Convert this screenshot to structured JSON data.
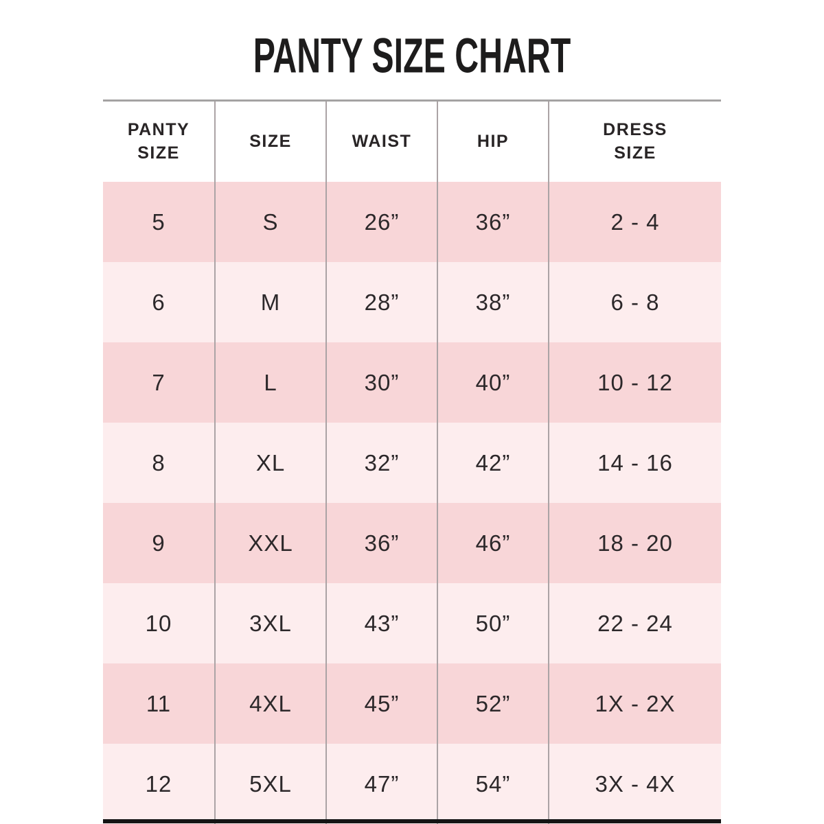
{
  "title": "PANTY SIZE CHART",
  "chart_data": {
    "type": "table",
    "title": "PANTY SIZE CHART",
    "columns": [
      "PANTY\nSIZE",
      "SIZE",
      "WAIST",
      "HIP",
      "DRESS\nSIZE"
    ],
    "rows": [
      [
        "5",
        "S",
        "26”",
        "36”",
        "2 - 4"
      ],
      [
        "6",
        "M",
        "28”",
        "38”",
        "6 - 8"
      ],
      [
        "7",
        "L",
        "30”",
        "40”",
        "10 - 12"
      ],
      [
        "8",
        "XL",
        "32”",
        "42”",
        "14 - 16"
      ],
      [
        "9",
        "XXL",
        "36”",
        "46”",
        "18 - 20"
      ],
      [
        "10",
        "3XL",
        "43”",
        "50”",
        "22 - 24"
      ],
      [
        "11",
        "4XL",
        "45”",
        "52”",
        "1X - 2X"
      ],
      [
        "12",
        "5XL",
        "47”",
        "54”",
        "3X - 4X"
      ]
    ],
    "layout": {
      "header_background": "#ffffff",
      "row_color_dark": "#f8d6d8",
      "row_color_light": "#fdedee",
      "divider_color": "#aba3a5",
      "top_border_color": "#a4a2a2",
      "bottom_border_color": "#141414",
      "text_color": "#2c282a",
      "row_striping": "alternating starting dark"
    }
  }
}
